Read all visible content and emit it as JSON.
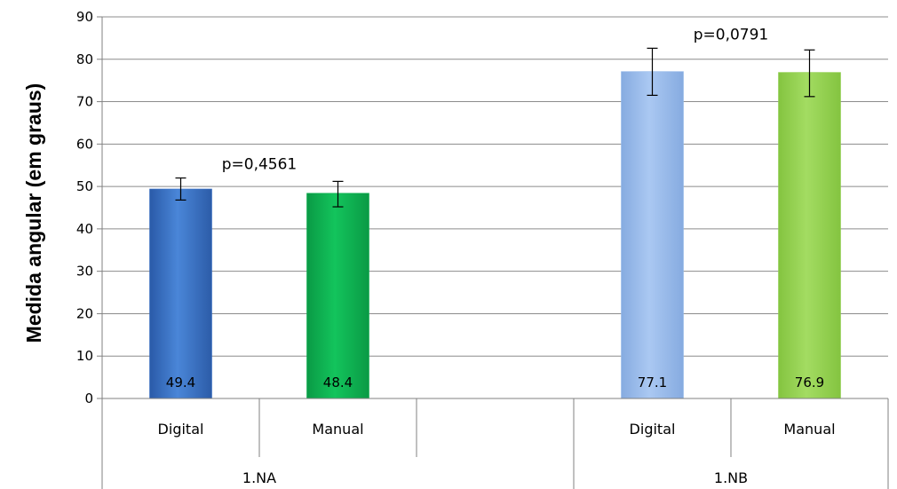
{
  "chart_data": {
    "type": "bar",
    "ylabel": "Medida angular (em graus)",
    "ylim": [
      0,
      90
    ],
    "yticks": [
      "0",
      "10",
      "20",
      "30",
      "40",
      "50",
      "60",
      "70",
      "80",
      "90"
    ],
    "grid": true,
    "groups": [
      {
        "label": "1.NA",
        "annotation": "p=0,4561",
        "bars": [
          {
            "category": "Digital",
            "value": 49.4,
            "value_label": "49.4",
            "error": [
              46.8,
              52.0
            ],
            "color": "#3a6fc4"
          },
          {
            "category": "Manual",
            "value": 48.4,
            "value_label": "48.4",
            "error": [
              45.2,
              51.2
            ],
            "color": "#10b050"
          }
        ]
      },
      {
        "label": "1.NB",
        "annotation": "p=0,0791",
        "bars": [
          {
            "category": "Digital",
            "value": 77.1,
            "value_label": "77.1",
            "error": [
              71.5,
              82.6
            ],
            "color": "#95b9ea"
          },
          {
            "category": "Manual",
            "value": 76.9,
            "value_label": "76.9",
            "error": [
              71.2,
              82.2
            ],
            "color": "#92d050"
          }
        ]
      }
    ]
  }
}
